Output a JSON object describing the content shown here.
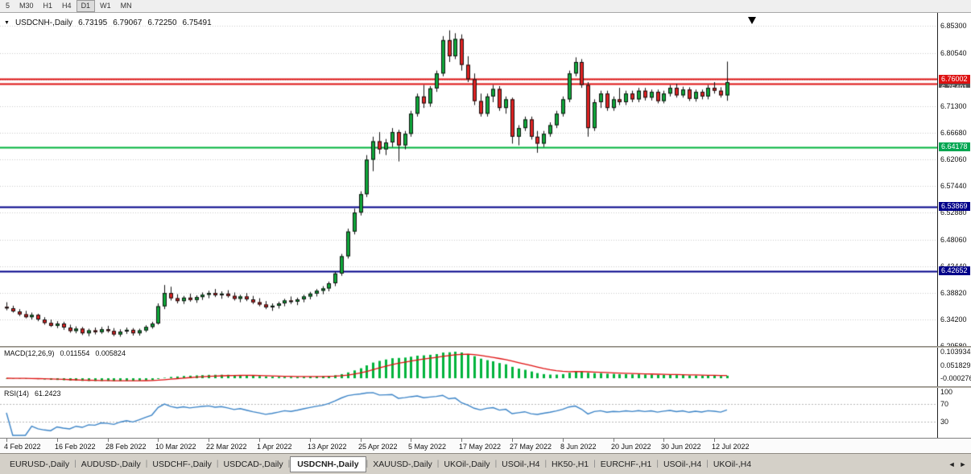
{
  "toolbar": {
    "timeframes": [
      {
        "label": "5",
        "active": false
      },
      {
        "label": "M30",
        "active": false
      },
      {
        "label": "H1",
        "active": false
      },
      {
        "label": "H4",
        "active": false
      },
      {
        "label": "D1",
        "active": true
      },
      {
        "label": "W1",
        "active": false
      },
      {
        "label": "MN",
        "active": false
      }
    ]
  },
  "chart": {
    "symbol": "USDCNH-,Daily",
    "ohlc": {
      "open": "6.73195",
      "high": "6.79067",
      "low": "6.72250",
      "close": "6.75491"
    },
    "price_axis": {
      "min": 6.2958,
      "max": 6.8754,
      "grid_labels": [
        {
          "text": "6.85300",
          "value": 6.853
        },
        {
          "text": "6.80540",
          "value": 6.8054
        },
        {
          "text": "6.71300",
          "value": 6.713
        },
        {
          "text": "6.66680",
          "value": 6.6668
        },
        {
          "text": "6.62060",
          "value": 6.6206
        },
        {
          "text": "6.57440",
          "value": 6.5744
        },
        {
          "text": "6.52880",
          "value": 6.5288
        },
        {
          "text": "6.48060",
          "value": 6.4806
        },
        {
          "text": "6.43440",
          "value": 6.4344
        },
        {
          "text": "6.38820",
          "value": 6.3882
        },
        {
          "text": "6.34200",
          "value": 6.342
        },
        {
          "text": "6.29580",
          "value": 6.2958
        }
      ],
      "grid_extra": [
        6.7592
      ],
      "line_labels": [
        {
          "text": "6.76002",
          "value": 6.76002,
          "bg": "#dd1111",
          "clipped": false
        },
        {
          "text": "6.75491",
          "value": 6.75491,
          "bg": "#555555",
          "clipped": true
        },
        {
          "text": "6.64178",
          "value": 6.64178,
          "bg": "#00a651",
          "clipped": false
        },
        {
          "text": "6.53869",
          "value": 6.53869,
          "bg": "#000089",
          "clipped": false
        },
        {
          "text": "6.42652",
          "value": 6.42652,
          "bg": "#000089",
          "clipped": false
        }
      ]
    },
    "hlines": [
      {
        "value": 6.76002,
        "color": "#dd1111",
        "width": 2
      },
      {
        "value": 6.752,
        "color": "#dd1111",
        "width": 2
      },
      {
        "value": 6.64178,
        "color": "#00b43c",
        "width": 2
      },
      {
        "value": 6.53869,
        "color": "#000089",
        "width": 2
      },
      {
        "value": 6.42652,
        "color": "#000089",
        "width": 2
      }
    ],
    "marker": {
      "index": 118,
      "price": 6.868
    },
    "colors": {
      "up": "#0fa83a",
      "down": "#e02222",
      "wick": "#111111",
      "grid": "#cdcdcd",
      "bg": "#ffffff"
    },
    "candles": [
      [
        6.364,
        6.372,
        6.358,
        6.3615
      ],
      [
        6.3615,
        6.366,
        6.354,
        6.356
      ],
      [
        6.356,
        6.36,
        6.348,
        6.351
      ],
      [
        6.351,
        6.357,
        6.344,
        6.346
      ],
      [
        6.346,
        6.354,
        6.342,
        6.35
      ],
      [
        6.35,
        6.352,
        6.339,
        6.342
      ],
      [
        6.342,
        6.346,
        6.333,
        6.336
      ],
      [
        6.336,
        6.342,
        6.329,
        6.331
      ],
      [
        6.331,
        6.339,
        6.327,
        6.335
      ],
      [
        6.335,
        6.338,
        6.324,
        6.328
      ],
      [
        6.328,
        6.333,
        6.319,
        6.322
      ],
      [
        6.322,
        6.33,
        6.318,
        6.326
      ],
      [
        6.326,
        6.329,
        6.315,
        6.318
      ],
      [
        6.318,
        6.326,
        6.313,
        6.323
      ],
      [
        6.323,
        6.328,
        6.316,
        6.32
      ],
      [
        6.32,
        6.329,
        6.317,
        6.325
      ],
      [
        6.325,
        6.331,
        6.319,
        6.322
      ],
      [
        6.322,
        6.327,
        6.313,
        6.316
      ],
      [
        6.316,
        6.325,
        6.312,
        6.321
      ],
      [
        6.321,
        6.328,
        6.317,
        6.324
      ],
      [
        6.324,
        6.327,
        6.314,
        6.318
      ],
      [
        6.318,
        6.326,
        6.314,
        6.323
      ],
      [
        6.323,
        6.332,
        6.32,
        6.329
      ],
      [
        6.329,
        6.338,
        6.326,
        6.335
      ],
      [
        6.335,
        6.37,
        6.333,
        6.365
      ],
      [
        6.365,
        6.402,
        6.36,
        6.388
      ],
      [
        6.388,
        6.399,
        6.375,
        6.379
      ],
      [
        6.379,
        6.386,
        6.37,
        6.374
      ],
      [
        6.374,
        6.383,
        6.369,
        6.38
      ],
      [
        6.38,
        6.387,
        6.373,
        6.376
      ],
      [
        6.376,
        6.384,
        6.371,
        6.381
      ],
      [
        6.381,
        6.389,
        6.376,
        6.385
      ],
      [
        6.385,
        6.392,
        6.379,
        6.388
      ],
      [
        6.388,
        6.395,
        6.381,
        6.384
      ],
      [
        6.384,
        6.391,
        6.378,
        6.387
      ],
      [
        6.387,
        6.393,
        6.38,
        6.383
      ],
      [
        6.383,
        6.389,
        6.375,
        6.378
      ],
      [
        6.378,
        6.385,
        6.372,
        6.382
      ],
      [
        6.382,
        6.388,
        6.374,
        6.377
      ],
      [
        6.377,
        6.383,
        6.369,
        6.372
      ],
      [
        6.372,
        6.379,
        6.365,
        6.368
      ],
      [
        6.368,
        6.374,
        6.36,
        6.363
      ],
      [
        6.363,
        6.37,
        6.357,
        6.366
      ],
      [
        6.366,
        6.373,
        6.361,
        6.37
      ],
      [
        6.37,
        6.378,
        6.365,
        6.375
      ],
      [
        6.375,
        6.382,
        6.369,
        6.373
      ],
      [
        6.373,
        6.38,
        6.367,
        6.377
      ],
      [
        6.377,
        6.385,
        6.372,
        6.382
      ],
      [
        6.382,
        6.39,
        6.377,
        6.387
      ],
      [
        6.387,
        6.395,
        6.382,
        6.392
      ],
      [
        6.392,
        6.4,
        6.386,
        6.396
      ],
      [
        6.396,
        6.408,
        6.391,
        6.405
      ],
      [
        6.405,
        6.425,
        6.4,
        6.422
      ],
      [
        6.422,
        6.456,
        6.418,
        6.452
      ],
      [
        6.452,
        6.5,
        6.448,
        6.495
      ],
      [
        6.495,
        6.535,
        6.49,
        6.528
      ],
      [
        6.528,
        6.565,
        6.523,
        6.56
      ],
      [
        6.56,
        6.628,
        6.555,
        6.62
      ],
      [
        6.62,
        6.66,
        6.6,
        6.652
      ],
      [
        6.652,
        6.668,
        6.63,
        6.638
      ],
      [
        6.638,
        6.656,
        6.628,
        6.65
      ],
      [
        6.65,
        6.675,
        6.642,
        6.668
      ],
      [
        6.668,
        6.672,
        6.617,
        6.645
      ],
      [
        6.645,
        6.67,
        6.638,
        6.665
      ],
      [
        6.665,
        6.705,
        6.66,
        6.7
      ],
      [
        6.7,
        6.735,
        6.695,
        6.73
      ],
      [
        6.73,
        6.75,
        6.71,
        6.718
      ],
      [
        6.718,
        6.748,
        6.712,
        6.744
      ],
      [
        6.744,
        6.775,
        6.738,
        6.77
      ],
      [
        6.77,
        6.835,
        6.765,
        6.828
      ],
      [
        6.828,
        6.845,
        6.79,
        6.8
      ],
      [
        6.8,
        6.84,
        6.795,
        6.83
      ],
      [
        6.83,
        6.838,
        6.775,
        6.785
      ],
      [
        6.785,
        6.8,
        6.755,
        6.76
      ],
      [
        6.76,
        6.77,
        6.715,
        6.722
      ],
      [
        6.722,
        6.735,
        6.695,
        6.7
      ],
      [
        6.7,
        6.735,
        6.695,
        6.73
      ],
      [
        6.73,
        6.75,
        6.72,
        6.743
      ],
      [
        6.743,
        6.748,
        6.705,
        6.71
      ],
      [
        6.71,
        6.73,
        6.7,
        6.725
      ],
      [
        6.725,
        6.728,
        6.648,
        6.66
      ],
      [
        6.66,
        6.68,
        6.645,
        6.675
      ],
      [
        6.675,
        6.695,
        6.67,
        6.69
      ],
      [
        6.69,
        6.695,
        6.655,
        6.66
      ],
      [
        6.66,
        6.67,
        6.632,
        6.648
      ],
      [
        6.648,
        6.67,
        6.642,
        6.665
      ],
      [
        6.665,
        6.685,
        6.66,
        6.68
      ],
      [
        6.68,
        6.705,
        6.675,
        6.7
      ],
      [
        6.7,
        6.73,
        6.695,
        6.725
      ],
      [
        6.725,
        6.775,
        6.72,
        6.77
      ],
      [
        6.77,
        6.798,
        6.765,
        6.79
      ],
      [
        6.79,
        6.795,
        6.745,
        6.75
      ],
      [
        6.75,
        6.755,
        6.66,
        6.675
      ],
      [
        6.675,
        6.725,
        6.67,
        6.72
      ],
      [
        6.72,
        6.74,
        6.71,
        6.735
      ],
      [
        6.735,
        6.74,
        6.705,
        6.71
      ],
      [
        6.71,
        6.73,
        6.705,
        6.725
      ],
      [
        6.725,
        6.745,
        6.715,
        6.72
      ],
      [
        6.72,
        6.74,
        6.715,
        6.735
      ],
      [
        6.735,
        6.74,
        6.72,
        6.725
      ],
      [
        6.725,
        6.745,
        6.72,
        6.74
      ],
      [
        6.74,
        6.745,
        6.723,
        6.728
      ],
      [
        6.728,
        6.742,
        6.723,
        6.738
      ],
      [
        6.738,
        6.742,
        6.718,
        6.722
      ],
      [
        6.722,
        6.74,
        6.718,
        6.735
      ],
      [
        6.735,
        6.75,
        6.73,
        6.745
      ],
      [
        6.745,
        6.752,
        6.728,
        6.732
      ],
      [
        6.732,
        6.747,
        6.728,
        6.742
      ],
      [
        6.742,
        6.746,
        6.722,
        6.726
      ],
      [
        6.726,
        6.742,
        6.721,
        6.738
      ],
      [
        6.738,
        6.742,
        6.725,
        6.73
      ],
      [
        6.73,
        6.75,
        6.725,
        6.745
      ],
      [
        6.745,
        6.755,
        6.735,
        6.74
      ],
      [
        6.74,
        6.746,
        6.728,
        6.732
      ],
      [
        6.73195,
        6.79067,
        6.7225,
        6.75491
      ]
    ]
  },
  "macd": {
    "name": "MACD(12,26,9)",
    "value_main": "0.011554",
    "value_signal": "0.005824",
    "params": {
      "fast": 12,
      "slow": 26,
      "signal": 9
    },
    "scale_max": 0.103934,
    "axis_labels": [
      {
        "text": "0.103934",
        "value": 0.103934
      },
      {
        "text": "0.051829",
        "value": 0.051829
      },
      {
        "text": "-0.000276",
        "value": -0.000276
      }
    ],
    "colors": {
      "hist": "#00b43c",
      "signal": "#e01111"
    }
  },
  "rsi": {
    "name": "RSI(14)",
    "value": "61.2423",
    "period": 14,
    "axis_labels": [
      {
        "text": "100",
        "value": 100
      },
      {
        "text": "70",
        "value": 70
      },
      {
        "text": "30",
        "value": 30
      }
    ],
    "levels": [
      70,
      30
    ],
    "color": "#3d85c8"
  },
  "time_axis": {
    "labels": [
      {
        "text": "4 Feb 2022",
        "index": 0
      },
      {
        "text": "16 Feb 2022",
        "index": 8
      },
      {
        "text": "28 Feb 2022",
        "index": 16
      },
      {
        "text": "10 Mar 2022",
        "index": 24
      },
      {
        "text": "22 Mar 2022",
        "index": 32
      },
      {
        "text": "1 Apr 2022",
        "index": 40
      },
      {
        "text": "13 Apr 2022",
        "index": 48
      },
      {
        "text": "25 Apr 2022",
        "index": 56
      },
      {
        "text": "5 May 2022",
        "index": 64
      },
      {
        "text": "17 May 2022",
        "index": 72
      },
      {
        "text": "27 May 2022",
        "index": 80
      },
      {
        "text": "8 Jun 2022",
        "index": 88
      },
      {
        "text": "20 Jun 2022",
        "index": 96
      },
      {
        "text": "30 Jun 2022",
        "index": 104
      },
      {
        "text": "12 Jul 2022",
        "index": 112
      }
    ]
  },
  "tabs": {
    "active_index": 4,
    "items": [
      "EURUSD-,Daily",
      "AUDUSD-,Daily",
      "USDCHF-,Daily",
      "USDCAD-,Daily",
      "USDCNH-,Daily",
      "XAUUSD-,Daily",
      "UKOil-,Daily",
      "USOil-,H4",
      "HK50-,H1",
      "EURCHF-,H1",
      "USOil-,H4",
      "UKOil-,H4"
    ],
    "scroll_left_icon": "◄",
    "scroll_right_icon": "►"
  }
}
